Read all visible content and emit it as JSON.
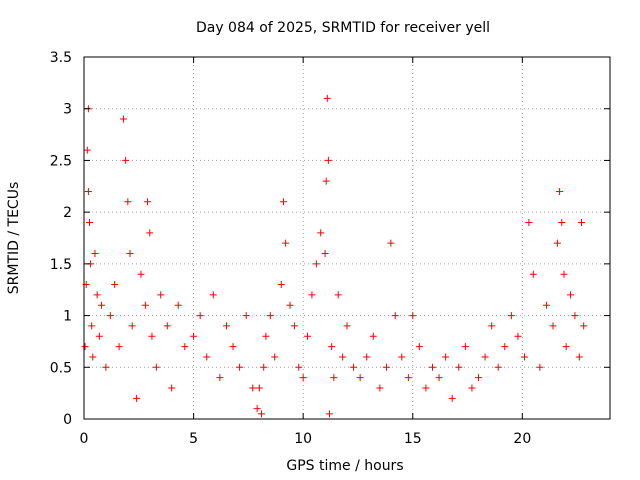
{
  "chart_data": {
    "type": "scatter",
    "title": "Day 084 of 2025, SRMTID for receiver yell",
    "xlabel": "GPS time / hours",
    "ylabel": "SRMTID / TECUs",
    "xlim": [
      0,
      24
    ],
    "ylim": [
      0,
      3.5
    ],
    "xticks": [
      0,
      5,
      10,
      15,
      20
    ],
    "xtick_labels": [
      "0",
      "5",
      "10",
      "15",
      "20"
    ],
    "yticks": [
      0,
      0.5,
      1,
      1.5,
      2,
      2.5,
      3,
      3.5
    ],
    "ytick_labels": [
      "0",
      "0.5",
      "1",
      "1.5",
      "2",
      "2.5",
      "3",
      "3.5"
    ],
    "grid": true,
    "marker": "+",
    "series": [
      {
        "name": "SRMTID",
        "color": "#ff0000",
        "x": [
          0.05,
          0.1,
          0.15,
          0.2,
          0.2,
          0.25,
          0.3,
          0.35,
          0.4,
          0.5,
          0.6,
          0.7,
          0.8,
          1.0,
          1.2,
          1.4,
          1.6,
          1.8,
          1.9,
          2.0,
          2.1,
          2.2,
          2.4,
          2.6,
          2.8,
          2.9,
          3.0,
          3.1,
          3.3,
          3.5,
          3.8,
          4.0,
          4.3,
          4.6,
          5.0,
          5.3,
          5.6,
          5.9,
          6.2,
          6.5,
          6.8,
          7.1,
          7.4,
          7.7,
          7.9,
          8.0,
          8.1,
          8.2,
          8.3,
          8.5,
          8.7,
          9.0,
          9.1,
          9.2,
          9.4,
          9.6,
          9.8,
          10.0,
          10.2,
          10.4,
          10.6,
          10.8,
          11.0,
          11.05,
          11.1,
          11.15,
          11.2,
          11.3,
          11.4,
          11.6,
          11.8,
          12.0,
          12.3,
          12.6,
          12.9,
          13.2,
          13.5,
          13.8,
          14.0,
          14.2,
          14.5,
          14.8,
          15.0,
          15.3,
          15.6,
          15.9,
          16.2,
          16.5,
          16.8,
          17.1,
          17.4,
          17.7,
          18.0,
          18.3,
          18.6,
          18.9,
          19.2,
          19.5,
          19.8,
          20.1,
          20.3,
          20.5,
          20.8,
          21.1,
          21.4,
          21.6,
          21.7,
          21.8,
          21.9,
          22.0,
          22.2,
          22.4,
          22.6,
          22.7,
          22.8
        ],
        "y": [
          0.7,
          1.3,
          2.6,
          3.0,
          2.2,
          1.9,
          1.5,
          0.9,
          0.6,
          1.6,
          1.2,
          0.8,
          1.1,
          0.5,
          1.0,
          1.3,
          0.7,
          2.9,
          2.5,
          2.1,
          1.6,
          0.9,
          0.2,
          1.4,
          1.1,
          2.1,
          1.8,
          0.8,
          0.5,
          1.2,
          0.9,
          0.3,
          1.1,
          0.7,
          0.8,
          1.0,
          0.6,
          1.2,
          0.4,
          0.9,
          0.7,
          0.5,
          1.0,
          0.3,
          0.1,
          0.3,
          0.05,
          0.5,
          0.8,
          1.0,
          0.6,
          1.3,
          2.1,
          1.7,
          1.1,
          0.9,
          0.5,
          0.4,
          0.8,
          1.2,
          1.5,
          1.8,
          1.6,
          2.3,
          3.1,
          2.5,
          0.05,
          0.7,
          0.4,
          1.2,
          0.6,
          0.9,
          0.5,
          0.4,
          0.6,
          0.8,
          0.3,
          0.5,
          1.7,
          1.0,
          0.6,
          0.4,
          1.0,
          0.7,
          0.3,
          0.5,
          0.4,
          0.6,
          0.2,
          0.5,
          0.7,
          0.3,
          0.4,
          0.6,
          0.9,
          0.5,
          0.7,
          1.0,
          0.8,
          0.6,
          1.9,
          1.4,
          0.5,
          1.1,
          0.9,
          1.7,
          2.2,
          1.9,
          1.4,
          0.7,
          1.2,
          1.0,
          0.6,
          1.9,
          0.9
        ]
      }
    ]
  }
}
